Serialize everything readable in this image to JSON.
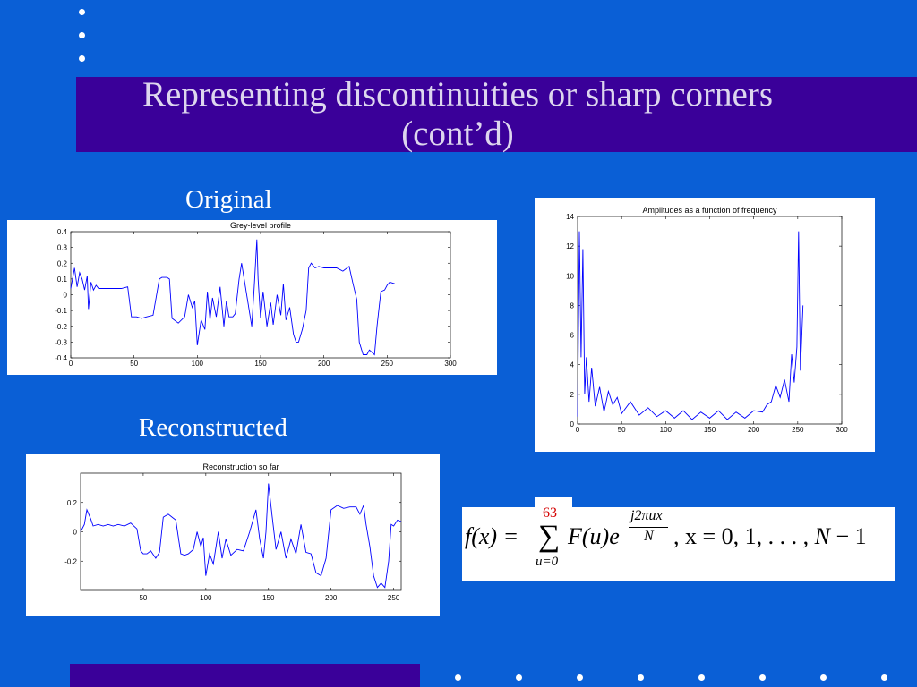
{
  "slide": {
    "title_line1": "Representing discontinuities or sharp corners",
    "title_line2": "(cont’d)",
    "label_original": "Original",
    "label_reconstructed": "Reconstructed",
    "slide_number": "63",
    "background_color": "#0a5fd6",
    "band_color": "#3a0099"
  },
  "formula": {
    "lhs": "f(x) = ",
    "sigma": "∑",
    "sum_limit_bottom": "u=0",
    "term": "F(u)e",
    "exponent_numerator": "j2πux",
    "exponent_denominator": "N",
    "tail_prefix": ", x = 0, 1, . . . , ",
    "tail_var": "N",
    "tail_suffix": " − 1"
  },
  "chart_data": [
    {
      "type": "line",
      "title": "Grey-level profile",
      "xlim": [
        0,
        300
      ],
      "ylim": [
        -0.4,
        0.4
      ],
      "xticks": [
        0,
        50,
        100,
        150,
        200,
        250,
        300
      ],
      "yticks": [
        -0.4,
        -0.3,
        -0.2,
        -0.1,
        0,
        0.1,
        0.2,
        0.3,
        0.4
      ],
      "ytick_labels": [
        "-0.4",
        "-0.3",
        "-0.2",
        "-0.1",
        "0",
        "0.1",
        "0.2",
        "0.3",
        "0.4"
      ],
      "series_color": "#0000ff",
      "x": [
        0,
        3,
        5,
        7,
        9,
        11,
        13,
        14,
        16,
        18,
        20,
        22,
        24,
        30,
        40,
        45,
        48,
        52,
        56,
        60,
        65,
        70,
        72,
        76,
        78,
        80,
        85,
        90,
        93,
        96,
        98,
        100,
        103,
        106,
        108,
        110,
        112,
        115,
        118,
        121,
        123,
        125,
        128,
        130,
        133,
        135,
        140,
        143,
        145,
        147,
        148,
        150,
        152,
        155,
        158,
        160,
        163,
        166,
        168,
        170,
        173,
        176,
        178,
        180,
        183,
        186,
        188,
        190,
        193,
        196,
        200,
        205,
        210,
        215,
        220,
        223,
        226,
        228,
        231,
        234,
        236,
        240,
        242,
        245,
        248,
        250,
        252,
        256
      ],
      "y": [
        0.04,
        0.17,
        0.05,
        0.14,
        0.1,
        0.03,
        0.12,
        -0.09,
        0.08,
        0.03,
        0.06,
        0.04,
        0.04,
        0.04,
        0.04,
        0.05,
        -0.14,
        -0.14,
        -0.15,
        -0.14,
        -0.13,
        0.1,
        0.11,
        0.11,
        0.1,
        -0.15,
        -0.18,
        -0.14,
        0.0,
        -0.08,
        -0.04,
        -0.32,
        -0.16,
        -0.22,
        0.02,
        -0.16,
        -0.02,
        -0.14,
        0.05,
        -0.2,
        -0.04,
        -0.14,
        -0.14,
        -0.12,
        0.1,
        0.2,
        -0.05,
        -0.2,
        0.05,
        0.35,
        0.1,
        -0.15,
        0.02,
        -0.2,
        -0.05,
        -0.19,
        0.0,
        -0.13,
        0.07,
        -0.16,
        -0.08,
        -0.25,
        -0.3,
        -0.3,
        -0.22,
        -0.1,
        0.17,
        0.2,
        0.17,
        0.18,
        0.17,
        0.17,
        0.17,
        0.15,
        0.18,
        0.07,
        -0.03,
        -0.3,
        -0.38,
        -0.38,
        -0.35,
        -0.38,
        -0.2,
        0.02,
        0.03,
        0.06,
        0.08,
        0.07
      ]
    },
    {
      "type": "line",
      "title": "Amplitudes as a function of frequency",
      "xlim": [
        0,
        300
      ],
      "ylim": [
        0,
        14
      ],
      "xticks": [
        0,
        50,
        100,
        150,
        200,
        250,
        300
      ],
      "yticks": [
        0,
        2,
        4,
        6,
        8,
        10,
        12,
        14
      ],
      "series_color": "#0000ff",
      "x": [
        0,
        2,
        4,
        6,
        8,
        10,
        13,
        16,
        20,
        25,
        30,
        35,
        40,
        45,
        50,
        60,
        70,
        80,
        90,
        100,
        110,
        120,
        130,
        140,
        150,
        160,
        170,
        180,
        190,
        200,
        210,
        215,
        220,
        225,
        230,
        235,
        240,
        243,
        246,
        249,
        251,
        253,
        256
      ],
      "y": [
        0.5,
        13,
        4.5,
        11.8,
        2,
        4.5,
        1.5,
        3.8,
        1.2,
        2.5,
        0.8,
        2.2,
        1.3,
        1.8,
        0.7,
        1.5,
        0.6,
        1.1,
        0.5,
        0.9,
        0.4,
        0.9,
        0.3,
        0.8,
        0.4,
        0.9,
        0.3,
        0.8,
        0.4,
        0.9,
        0.8,
        1.3,
        1.5,
        2.6,
        1.8,
        3.0,
        1.5,
        4.7,
        2.8,
        5.2,
        13,
        3.6,
        8
      ]
    },
    {
      "type": "line",
      "title": "Reconstruction so far",
      "xlim": [
        0,
        256
      ],
      "ylim": [
        -0.4,
        0.4
      ],
      "xticks": [
        50,
        100,
        150,
        200,
        250
      ],
      "yticks": [
        -0.2,
        0,
        0.2
      ],
      "ytick_labels": [
        "-0.2",
        "0",
        "0.2"
      ],
      "series_color": "#0000ff",
      "x": [
        0,
        3,
        5,
        8,
        10,
        14,
        18,
        22,
        26,
        30,
        35,
        40,
        45,
        48,
        50,
        53,
        56,
        60,
        63,
        66,
        70,
        73,
        76,
        80,
        83,
        86,
        90,
        93,
        96,
        98,
        100,
        103,
        106,
        110,
        113,
        116,
        120,
        125,
        130,
        135,
        140,
        143,
        146,
        148,
        150,
        153,
        156,
        160,
        164,
        168,
        172,
        176,
        180,
        184,
        188,
        192,
        196,
        200,
        205,
        210,
        215,
        220,
        223,
        226,
        228,
        231,
        234,
        237,
        240,
        243,
        246,
        248,
        250,
        253,
        256
      ],
      "y": [
        0.0,
        0.05,
        0.15,
        0.09,
        0.04,
        0.05,
        0.04,
        0.05,
        0.04,
        0.05,
        0.04,
        0.06,
        0.02,
        -0.13,
        -0.15,
        -0.15,
        -0.13,
        -0.18,
        -0.14,
        0.1,
        0.12,
        0.1,
        0.08,
        -0.15,
        -0.16,
        -0.15,
        -0.12,
        0.0,
        -0.1,
        -0.04,
        -0.3,
        -0.15,
        -0.22,
        0.0,
        -0.18,
        -0.05,
        -0.16,
        -0.12,
        -0.13,
        0.0,
        0.15,
        -0.05,
        -0.18,
        0.0,
        0.33,
        0.1,
        -0.12,
        0.0,
        -0.18,
        -0.05,
        -0.15,
        0.05,
        -0.14,
        -0.15,
        -0.28,
        -0.3,
        -0.18,
        0.15,
        0.18,
        0.16,
        0.17,
        0.17,
        0.12,
        0.18,
        0.05,
        -0.1,
        -0.3,
        -0.38,
        -0.35,
        -0.38,
        -0.2,
        0.05,
        0.04,
        0.08,
        0.07
      ]
    }
  ]
}
